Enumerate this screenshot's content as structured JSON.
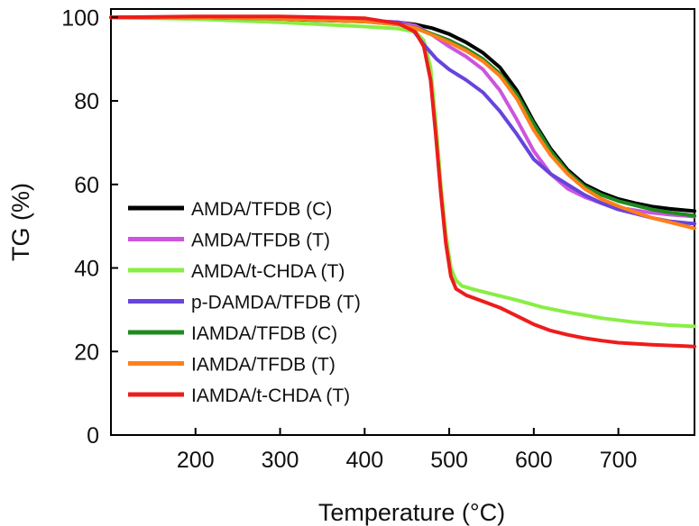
{
  "chart_data": {
    "type": "line",
    "title": "",
    "xlabel": "Temperature (°C)",
    "ylabel": "TG (%)",
    "xlim": [
      100,
      790
    ],
    "ylim": [
      0,
      102
    ],
    "xticks": [
      200,
      300,
      400,
      500,
      600,
      700
    ],
    "yticks": [
      0,
      20,
      40,
      60,
      80,
      100
    ],
    "grid": false,
    "legend_position": "left",
    "series": [
      {
        "name": "AMDA/TFDB (C)",
        "color": "#000000",
        "points": [
          [
            100,
            100
          ],
          [
            200,
            100
          ],
          [
            300,
            99.6
          ],
          [
            400,
            99
          ],
          [
            440,
            98.8
          ],
          [
            460,
            98.3
          ],
          [
            480,
            97.4
          ],
          [
            500,
            96
          ],
          [
            520,
            94
          ],
          [
            540,
            91.5
          ],
          [
            560,
            88
          ],
          [
            580,
            82.5
          ],
          [
            600,
            75
          ],
          [
            620,
            68.5
          ],
          [
            640,
            63.5
          ],
          [
            660,
            60
          ],
          [
            680,
            58
          ],
          [
            700,
            56.5
          ],
          [
            720,
            55.5
          ],
          [
            740,
            54.7
          ],
          [
            760,
            54.2
          ],
          [
            790,
            53.6
          ]
        ]
      },
      {
        "name": "AMDA/TFDB (T)",
        "color": "#cc55dd",
        "points": [
          [
            100,
            100
          ],
          [
            200,
            100
          ],
          [
            300,
            99.7
          ],
          [
            400,
            99.2
          ],
          [
            440,
            98.8
          ],
          [
            460,
            98
          ],
          [
            480,
            95.8
          ],
          [
            500,
            93
          ],
          [
            520,
            90.6
          ],
          [
            540,
            87.5
          ],
          [
            560,
            82.5
          ],
          [
            580,
            75.5
          ],
          [
            600,
            68
          ],
          [
            620,
            62.5
          ],
          [
            640,
            59
          ],
          [
            660,
            57
          ],
          [
            680,
            55.5
          ],
          [
            700,
            54.5
          ],
          [
            720,
            53.8
          ],
          [
            740,
            53.2
          ],
          [
            760,
            52.8
          ],
          [
            790,
            52.3
          ]
        ]
      },
      {
        "name": "AMDA/t-CHDA (T)",
        "color": "#88ee44",
        "points": [
          [
            100,
            100
          ],
          [
            200,
            99.6
          ],
          [
            300,
            98.8
          ],
          [
            400,
            97.8
          ],
          [
            440,
            97.3
          ],
          [
            460,
            96.5
          ],
          [
            470,
            94.5
          ],
          [
            478,
            88
          ],
          [
            484,
            75
          ],
          [
            490,
            60
          ],
          [
            496,
            48
          ],
          [
            502,
            40
          ],
          [
            508,
            37
          ],
          [
            515,
            35.7
          ],
          [
            530,
            34.8
          ],
          [
            550,
            33.8
          ],
          [
            580,
            32.3
          ],
          [
            610,
            30.6
          ],
          [
            640,
            29.4
          ],
          [
            680,
            28
          ],
          [
            720,
            27
          ],
          [
            760,
            26.3
          ],
          [
            790,
            26
          ]
        ]
      },
      {
        "name": "p-DAMDA/TFDB (T)",
        "color": "#6644dd",
        "points": [
          [
            100,
            100
          ],
          [
            200,
            100
          ],
          [
            300,
            99.7
          ],
          [
            400,
            99.3
          ],
          [
            440,
            98.8
          ],
          [
            455,
            97.5
          ],
          [
            470,
            93.5
          ],
          [
            485,
            90
          ],
          [
            500,
            87.5
          ],
          [
            520,
            85
          ],
          [
            540,
            82
          ],
          [
            560,
            77.5
          ],
          [
            580,
            72
          ],
          [
            600,
            66
          ],
          [
            620,
            62.5
          ],
          [
            640,
            60
          ],
          [
            660,
            57.5
          ],
          [
            680,
            55.5
          ],
          [
            700,
            54
          ],
          [
            720,
            53
          ],
          [
            740,
            52
          ],
          [
            760,
            51.2
          ],
          [
            790,
            50.6
          ]
        ]
      },
      {
        "name": "IAMDA/TFDB (C)",
        "color": "#1f8b1f",
        "points": [
          [
            100,
            100
          ],
          [
            200,
            100
          ],
          [
            300,
            99.7
          ],
          [
            400,
            99
          ],
          [
            440,
            98.3
          ],
          [
            460,
            97.5
          ],
          [
            480,
            96
          ],
          [
            500,
            94.5
          ],
          [
            520,
            92.5
          ],
          [
            540,
            90
          ],
          [
            560,
            86.5
          ],
          [
            580,
            81.5
          ],
          [
            600,
            74.5
          ],
          [
            620,
            68
          ],
          [
            640,
            63
          ],
          [
            660,
            59.5
          ],
          [
            680,
            57.5
          ],
          [
            700,
            56
          ],
          [
            720,
            55
          ],
          [
            740,
            54
          ],
          [
            760,
            53.3
          ],
          [
            790,
            52.5
          ]
        ]
      },
      {
        "name": "IAMDA/TFDB (T)",
        "color": "#ff7f1a",
        "points": [
          [
            100,
            100
          ],
          [
            200,
            100
          ],
          [
            300,
            99.7
          ],
          [
            400,
            99
          ],
          [
            440,
            98.3
          ],
          [
            460,
            97.4
          ],
          [
            480,
            95.8
          ],
          [
            500,
            94
          ],
          [
            520,
            92
          ],
          [
            540,
            89.5
          ],
          [
            560,
            86
          ],
          [
            580,
            80.5
          ],
          [
            600,
            73
          ],
          [
            620,
            67
          ],
          [
            640,
            62.5
          ],
          [
            660,
            59
          ],
          [
            680,
            56.5
          ],
          [
            700,
            54.8
          ],
          [
            720,
            53.3
          ],
          [
            740,
            52
          ],
          [
            760,
            51
          ],
          [
            790,
            49.5
          ]
        ]
      },
      {
        "name": "IAMDA/t-CHDA (T)",
        "color": "#ee1c1c",
        "points": [
          [
            100,
            100
          ],
          [
            200,
            100.2
          ],
          [
            300,
            100.2
          ],
          [
            400,
            99.8
          ],
          [
            440,
            98.5
          ],
          [
            460,
            96.5
          ],
          [
            470,
            93
          ],
          [
            478,
            85
          ],
          [
            484,
            72
          ],
          [
            490,
            58
          ],
          [
            496,
            46
          ],
          [
            502,
            38
          ],
          [
            508,
            35
          ],
          [
            520,
            33.5
          ],
          [
            540,
            32
          ],
          [
            560,
            30.5
          ],
          [
            580,
            28.5
          ],
          [
            600,
            26.5
          ],
          [
            620,
            25
          ],
          [
            640,
            24
          ],
          [
            660,
            23.2
          ],
          [
            680,
            22.6
          ],
          [
            700,
            22.1
          ],
          [
            740,
            21.6
          ],
          [
            790,
            21.2
          ]
        ]
      }
    ]
  }
}
